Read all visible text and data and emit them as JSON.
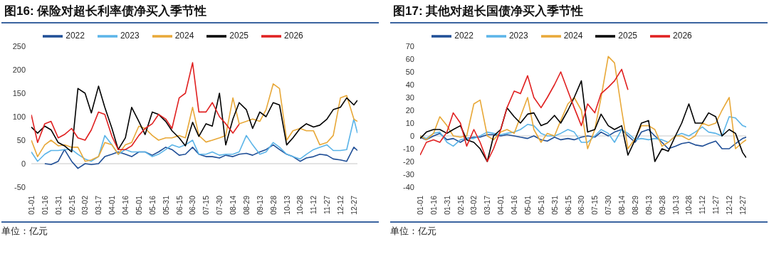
{
  "chart_data": [
    {
      "type": "line",
      "title": "图16: 保险对超长利率债净买入季节性",
      "annotations": [
        "单位：亿元"
      ],
      "legend": "top",
      "ylim": [
        -50,
        250
      ],
      "yticks": [
        -50,
        0,
        50,
        100,
        150,
        200,
        250
      ],
      "xlim": [
        "--01-01",
        "--12-31"
      ],
      "xticks": [
        {
          "value": "--01-01",
          "label": "01-01"
        },
        {
          "value": "--01-16",
          "label": "01-16"
        },
        {
          "value": "--01-31",
          "label": "01-31"
        },
        {
          "value": "--02-15",
          "label": "02-15"
        },
        {
          "value": "--03-02",
          "label": "03-02"
        },
        {
          "value": "--03-17",
          "label": "03-17"
        },
        {
          "value": "--04-01",
          "label": "04-01"
        },
        {
          "value": "--04-16",
          "label": "04-16"
        },
        {
          "value": "--05-01",
          "label": "05-01"
        },
        {
          "value": "--05-16",
          "label": "05-16"
        },
        {
          "value": "--05-31",
          "label": "05-31"
        },
        {
          "value": "--06-15",
          "label": "06-15"
        },
        {
          "value": "--06-30",
          "label": "06-30"
        },
        {
          "value": "--07-15",
          "label": "07-15"
        },
        {
          "value": "--07-30",
          "label": "07-30"
        },
        {
          "value": "--08-14",
          "label": "08-14"
        },
        {
          "value": "--08-29",
          "label": "08-29"
        },
        {
          "value": "--09-13",
          "label": "09-13"
        },
        {
          "value": "--09-28",
          "label": "09-28"
        },
        {
          "value": "--10-13",
          "label": "10-13"
        },
        {
          "value": "--10-28",
          "label": "10-28"
        },
        {
          "value": "--11-12",
          "label": "11-12"
        },
        {
          "value": "--11-27",
          "label": "11-27"
        },
        {
          "value": "--12-12",
          "label": "12-12"
        },
        {
          "value": "--12-27",
          "label": "12-27"
        }
      ],
      "ref_lines": [
        {
          "axis": "y",
          "value": 0,
          "color": "#c8c8c8"
        }
      ],
      "x": [
        "--01-01",
        "--01-08",
        "--01-16",
        "--01-23",
        "--01-31",
        "--02-07",
        "--02-15",
        "--02-22",
        "--03-02",
        "--03-09",
        "--03-17",
        "--03-24",
        "--04-01",
        "--04-08",
        "--04-16",
        "--04-23",
        "--05-01",
        "--05-08",
        "--05-16",
        "--05-23",
        "--05-31",
        "--06-07",
        "--06-15",
        "--06-22",
        "--06-30",
        "--07-07",
        "--07-15",
        "--07-22",
        "--07-30",
        "--08-06",
        "--08-14",
        "--08-21",
        "--08-29",
        "--09-05",
        "--09-13",
        "--09-20",
        "--09-28",
        "--10-05",
        "--10-13",
        "--10-20",
        "--10-28",
        "--11-04",
        "--11-12",
        "--11-19",
        "--11-27",
        "--12-04",
        "--12-12",
        "--12-19",
        "--12-27",
        "--12-31"
      ],
      "series": [
        {
          "name": "2022",
          "color": "#1f4e96",
          "values": [
            null,
            null,
            0,
            -2,
            5,
            30,
            5,
            -10,
            0,
            -2,
            0,
            15,
            20,
            25,
            20,
            15,
            25,
            25,
            18,
            25,
            35,
            30,
            18,
            20,
            35,
            20,
            15,
            15,
            12,
            18,
            15,
            20,
            22,
            18,
            25,
            30,
            40,
            30,
            20,
            15,
            5,
            12,
            15,
            20,
            18,
            10,
            8,
            5,
            35,
            28
          ]
        },
        {
          "name": "2023",
          "color": "#5bb4e8",
          "values": [
            25,
            5,
            20,
            28,
            28,
            30,
            30,
            20,
            10,
            5,
            15,
            60,
            40,
            20,
            30,
            25,
            25,
            25,
            15,
            20,
            30,
            40,
            35,
            40,
            50,
            20,
            20,
            25,
            18,
            20,
            20,
            25,
            60,
            40,
            20,
            25,
            45,
            35,
            20,
            15,
            10,
            20,
            30,
            35,
            40,
            28,
            28,
            30,
            95,
            65
          ]
        },
        {
          "name": "2024",
          "color": "#e8a838",
          "values": [
            50,
            15,
            40,
            50,
            38,
            40,
            35,
            35,
            5,
            8,
            15,
            45,
            40,
            20,
            40,
            45,
            80,
            75,
            60,
            50,
            55,
            55,
            60,
            55,
            120,
            60,
            46,
            50,
            55,
            60,
            140,
            85,
            90,
            95,
            90,
            115,
            170,
            160,
            50,
            70,
            75,
            70,
            70,
            40,
            45,
            60,
            140,
            145,
            95,
            90
          ]
        },
        {
          "name": "2025",
          "color": "#000000",
          "values": [
            78,
            65,
            80,
            72,
            45,
            38,
            25,
            160,
            150,
            108,
            165,
            120,
            75,
            30,
            55,
            120,
            90,
            62,
            110,
            105,
            90,
            70,
            55,
            38,
            88,
            58,
            85,
            80,
            150,
            40,
            95,
            130,
            115,
            75,
            110,
            100,
            130,
            125,
            40,
            55,
            75,
            85,
            78,
            82,
            95,
            115,
            120,
            140,
            125,
            135
          ]
        },
        {
          "name": "2026",
          "color": "#e02020",
          "values": [
            104,
            45,
            85,
            90,
            55,
            62,
            75,
            55,
            50,
            72,
            110,
            105,
            58,
            30,
            30,
            38,
            60,
            75,
            85,
            105,
            95,
            75,
            140,
            150,
            215,
            110,
            110,
            130,
            100,
            85,
            65,
            84,
            null,
            null,
            null,
            null,
            null,
            null,
            null,
            null,
            null,
            null,
            null,
            null,
            null,
            null,
            null,
            null,
            null,
            null
          ]
        }
      ]
    },
    {
      "type": "line",
      "title": "图17: 其他对超长国债净买入季节性",
      "annotations": [
        "单位：亿元"
      ],
      "legend": "top",
      "ylim": [
        -40,
        70
      ],
      "yticks": [
        -40,
        -30,
        -20,
        -10,
        0,
        10,
        20,
        30,
        40,
        50,
        60,
        70
      ],
      "xlim": [
        "--01-01",
        "--12-31"
      ],
      "xticks": [
        {
          "value": "--01-01",
          "label": "01-01"
        },
        {
          "value": "--01-16",
          "label": "01-16"
        },
        {
          "value": "--01-31",
          "label": "01-31"
        },
        {
          "value": "--02-15",
          "label": "02-15"
        },
        {
          "value": "--03-02",
          "label": "03-02"
        },
        {
          "value": "--03-17",
          "label": "03-17"
        },
        {
          "value": "--04-01",
          "label": "04-01"
        },
        {
          "value": "--04-16",
          "label": "04-16"
        },
        {
          "value": "--05-01",
          "label": "05-01"
        },
        {
          "value": "--05-16",
          "label": "05-16"
        },
        {
          "value": "--05-31",
          "label": "05-31"
        },
        {
          "value": "--06-15",
          "label": "06-15"
        },
        {
          "value": "--06-30",
          "label": "06-30"
        },
        {
          "value": "--07-15",
          "label": "07-15"
        },
        {
          "value": "--07-30",
          "label": "07-30"
        },
        {
          "value": "--08-14",
          "label": "08-14"
        },
        {
          "value": "--08-29",
          "label": "08-29"
        },
        {
          "value": "--09-13",
          "label": "09-13"
        },
        {
          "value": "--09-28",
          "label": "09-28"
        },
        {
          "value": "--10-13",
          "label": "10-13"
        },
        {
          "value": "--10-28",
          "label": "10-28"
        },
        {
          "value": "--11-12",
          "label": "11-12"
        },
        {
          "value": "--11-27",
          "label": "11-27"
        },
        {
          "value": "--12-12",
          "label": "12-12"
        },
        {
          "value": "--12-27",
          "label": "12-27"
        }
      ],
      "ref_lines": [
        {
          "axis": "y",
          "value": 0,
          "color": "#c8c8c8"
        }
      ],
      "x": [
        "--01-01",
        "--01-08",
        "--01-16",
        "--01-23",
        "--01-31",
        "--02-07",
        "--02-15",
        "--02-22",
        "--03-02",
        "--03-09",
        "--03-17",
        "--03-24",
        "--04-01",
        "--04-08",
        "--04-16",
        "--04-23",
        "--05-01",
        "--05-08",
        "--05-16",
        "--05-23",
        "--05-31",
        "--06-07",
        "--06-15",
        "--06-22",
        "--06-30",
        "--07-07",
        "--07-15",
        "--07-22",
        "--07-30",
        "--08-06",
        "--08-14",
        "--08-21",
        "--08-29",
        "--09-05",
        "--09-13",
        "--09-20",
        "--09-28",
        "--10-05",
        "--10-13",
        "--10-20",
        "--10-28",
        "--11-04",
        "--11-12",
        "--11-19",
        "--11-27",
        "--12-04",
        "--12-12",
        "--12-19",
        "--12-27",
        "--12-31"
      ],
      "series": [
        {
          "name": "2022",
          "color": "#1f4e96",
          "values": [
            -1,
            -3,
            0,
            2,
            -3,
            -2,
            -5,
            -2,
            -1,
            -1,
            1,
            1,
            0,
            1,
            0,
            -1,
            -2,
            0,
            -3,
            -4,
            -1,
            -3,
            -2,
            -3,
            -1,
            0,
            -1,
            3,
            0,
            3,
            5,
            0,
            -5,
            3,
            5,
            0,
            -5,
            -10,
            -8,
            -6,
            -5,
            -7,
            -8,
            -6,
            -4,
            -10,
            -10,
            -6,
            -2,
            -1
          ]
        },
        {
          "name": "2023",
          "color": "#5bb4e8",
          "values": [
            0,
            -2,
            2,
            3,
            -5,
            -8,
            -3,
            -2,
            -2,
            0,
            3,
            2,
            1,
            2,
            3,
            5,
            9,
            8,
            2,
            0,
            0,
            2,
            5,
            3,
            -5,
            -5,
            0,
            5,
            2,
            -5,
            5,
            2,
            -3,
            -2,
            -3,
            -2,
            -3,
            -5,
            0,
            2,
            0,
            3,
            7,
            3,
            2,
            0,
            15,
            14,
            8,
            7
          ]
        },
        {
          "name": "2024",
          "color": "#e8a838",
          "values": [
            0,
            -3,
            2,
            15,
            8,
            0,
            -1,
            0,
            25,
            28,
            0,
            -3,
            3,
            5,
            2,
            15,
            30,
            5,
            -5,
            2,
            0,
            12,
            25,
            30,
            20,
            -10,
            5,
            30,
            62,
            57,
            20,
            -10,
            -2,
            8,
            8,
            5,
            -8,
            -5,
            0,
            0,
            -3,
            0,
            10,
            8,
            10,
            20,
            30,
            -10,
            -5,
            -3
          ]
        },
        {
          "name": "2025",
          "color": "#000000",
          "values": [
            -2,
            3,
            5,
            5,
            2,
            5,
            8,
            -3,
            -5,
            -10,
            -20,
            0,
            5,
            22,
            15,
            10,
            17,
            18,
            8,
            10,
            16,
            10,
            20,
            30,
            43,
            3,
            5,
            17,
            8,
            5,
            8,
            -15,
            -3,
            10,
            12,
            -20,
            -10,
            -12,
            0,
            10,
            25,
            10,
            10,
            18,
            15,
            0,
            5,
            2,
            -13,
            -17
          ]
        },
        {
          "name": "2026",
          "color": "#e02020",
          "values": [
            -15,
            -5,
            -3,
            -5,
            3,
            18,
            10,
            -8,
            5,
            -5,
            -20,
            -10,
            5,
            22,
            35,
            33,
            47,
            30,
            22,
            30,
            40,
            50,
            35,
            22,
            8,
            25,
            18,
            33,
            38,
            43,
            52,
            36,
            null,
            null,
            null,
            null,
            null,
            null,
            null,
            null,
            null,
            null,
            null,
            null,
            null,
            null,
            null,
            null,
            null,
            null
          ]
        }
      ]
    }
  ]
}
